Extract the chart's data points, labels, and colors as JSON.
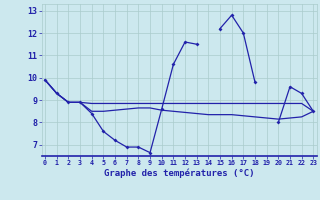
{
  "title": "Graphe des températures (°C)",
  "bg_color": "#cce8ee",
  "line_color": "#2222aa",
  "grid_color": "#aacccc",
  "hours": [
    0,
    1,
    2,
    3,
    4,
    5,
    6,
    7,
    8,
    9,
    10,
    11,
    12,
    13,
    14,
    15,
    16,
    17,
    18,
    19,
    20,
    21,
    22,
    23
  ],
  "temp_main": [
    9.9,
    9.3,
    8.9,
    8.9,
    8.4,
    7.6,
    7.2,
    6.9,
    6.9,
    6.65,
    8.6,
    10.6,
    11.6,
    11.5,
    null,
    12.2,
    12.8,
    12.0,
    9.8,
    null,
    8.0,
    9.6,
    9.3,
    8.5
  ],
  "temp_avg_high": [
    9.9,
    9.3,
    8.9,
    8.9,
    8.85,
    8.85,
    8.85,
    8.85,
    8.85,
    8.85,
    8.85,
    8.85,
    8.85,
    8.85,
    8.85,
    8.85,
    8.85,
    8.85,
    8.85,
    8.85,
    8.85,
    8.85,
    8.85,
    8.5
  ],
  "temp_avg_low": [
    9.9,
    9.3,
    8.9,
    8.9,
    8.5,
    8.5,
    8.55,
    8.6,
    8.65,
    8.65,
    8.55,
    8.5,
    8.45,
    8.4,
    8.35,
    8.35,
    8.35,
    8.3,
    8.25,
    8.2,
    8.15,
    8.2,
    8.25,
    8.5
  ],
  "ylim": [
    6.5,
    13.3
  ],
  "yticks": [
    7,
    8,
    9,
    10,
    11,
    12,
    13
  ],
  "xlim": [
    -0.3,
    23.3
  ]
}
